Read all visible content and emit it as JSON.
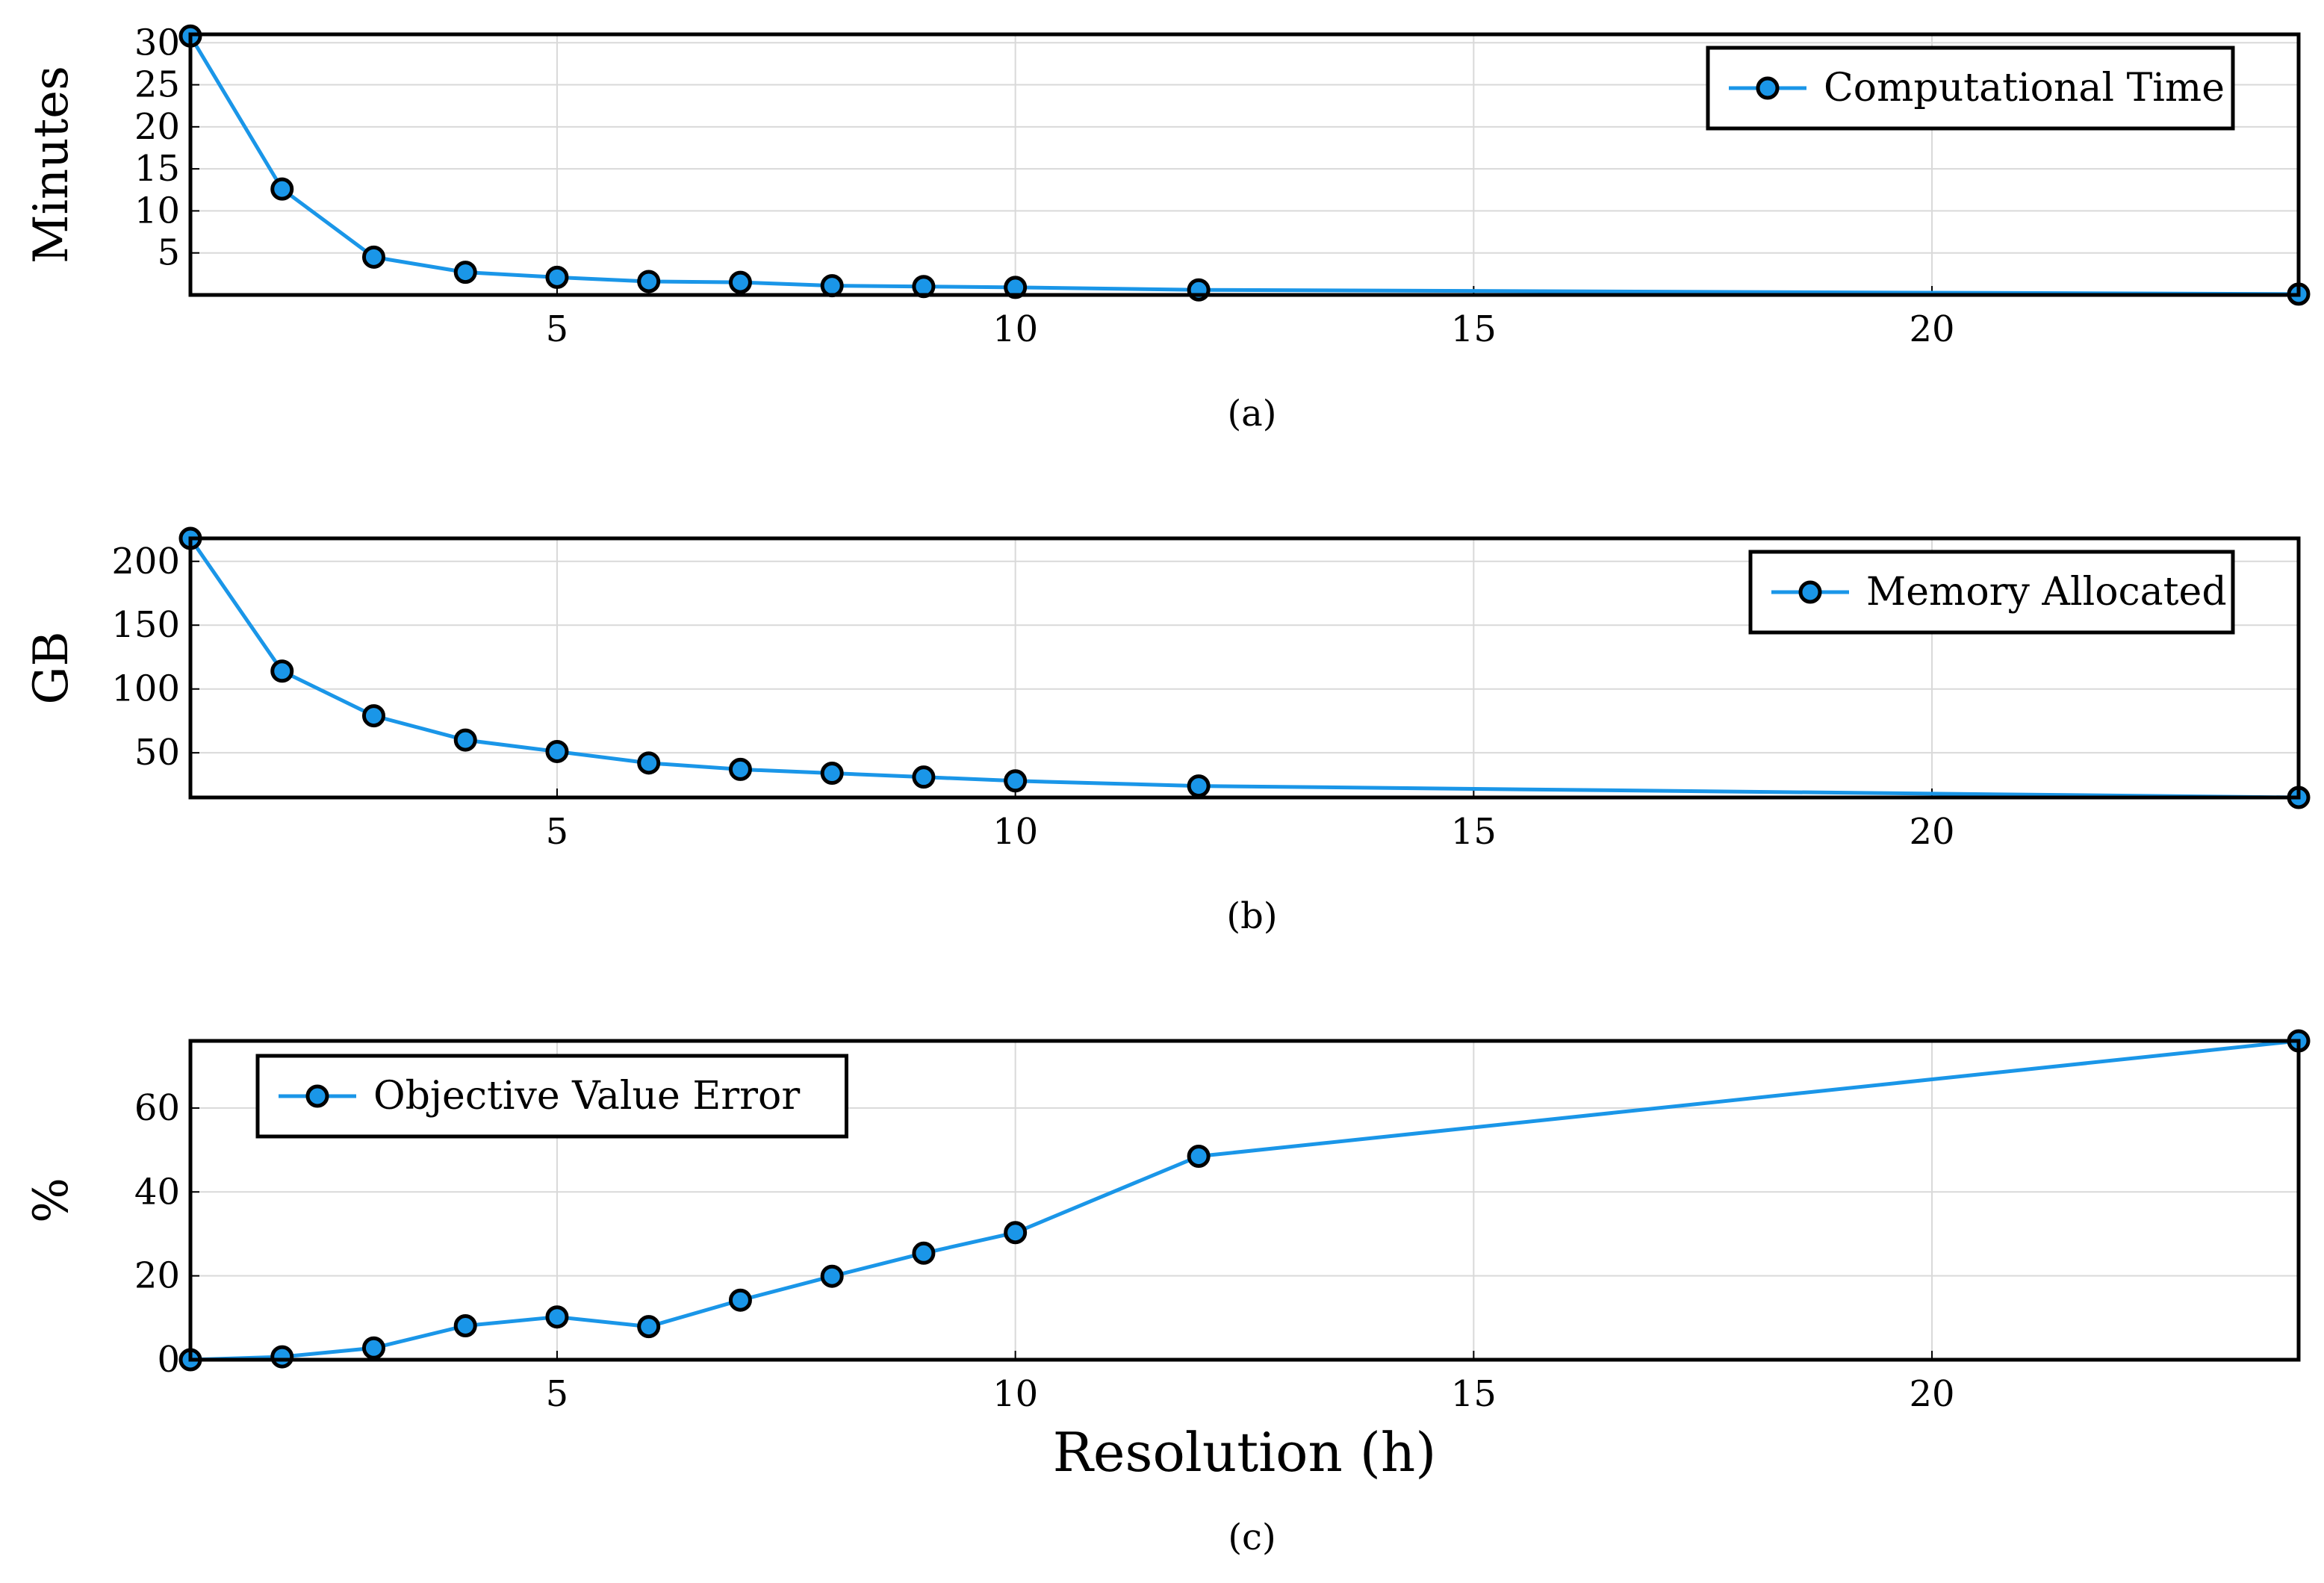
{
  "colors": {
    "series": "#1a96e8",
    "marker_fill": "#1a96e8",
    "marker_stroke": "#000000",
    "grid": "#d9d9d9",
    "frame": "#000000"
  },
  "chart_data": [
    {
      "type": "line",
      "caption": "(a)",
      "ylabel": "Minutes",
      "xlabel": "",
      "xlim": [
        1,
        24
      ],
      "ylim": [
        0,
        31
      ],
      "xticks": [
        5,
        10,
        15,
        20
      ],
      "yticks": [
        5,
        10,
        15,
        20,
        25,
        30
      ],
      "legend_position": "top-right",
      "series": [
        {
          "name": "Computational Time",
          "x": [
            1,
            2,
            3,
            4,
            5,
            6,
            7,
            8,
            9,
            10,
            12,
            24
          ],
          "y": [
            30.8,
            12.6,
            4.5,
            2.7,
            2.1,
            1.6,
            1.5,
            1.1,
            1.0,
            0.9,
            0.6,
            0.1
          ]
        }
      ]
    },
    {
      "type": "line",
      "caption": "(b)",
      "ylabel": "GB",
      "xlabel": "",
      "xlim": [
        1,
        24
      ],
      "ylim": [
        15,
        218
      ],
      "xticks": [
        5,
        10,
        15,
        20
      ],
      "yticks": [
        50,
        100,
        150,
        200
      ],
      "legend_position": "top-right",
      "series": [
        {
          "name": "Memory Allocated",
          "x": [
            1,
            2,
            3,
            4,
            5,
            6,
            7,
            8,
            9,
            10,
            12,
            24
          ],
          "y": [
            218,
            114,
            79,
            60,
            51,
            42,
            37,
            34,
            31,
            28,
            24,
            15
          ]
        }
      ]
    },
    {
      "type": "line",
      "caption": "(c)",
      "ylabel": "%",
      "xlabel": "Resolution (h)",
      "xlim": [
        1,
        24
      ],
      "ylim": [
        0,
        76
      ],
      "xticks": [
        5,
        10,
        15,
        20
      ],
      "yticks": [
        0,
        20,
        40,
        60
      ],
      "legend_position": "top-left",
      "series": [
        {
          "name": "Objective Value Error",
          "x": [
            1,
            2,
            3,
            4,
            5,
            6,
            7,
            8,
            9,
            10,
            12,
            24
          ],
          "y": [
            0,
            0.7,
            2.8,
            8.1,
            10.2,
            7.9,
            14.2,
            19.9,
            25.4,
            30.3,
            48.5,
            76
          ]
        }
      ]
    }
  ]
}
